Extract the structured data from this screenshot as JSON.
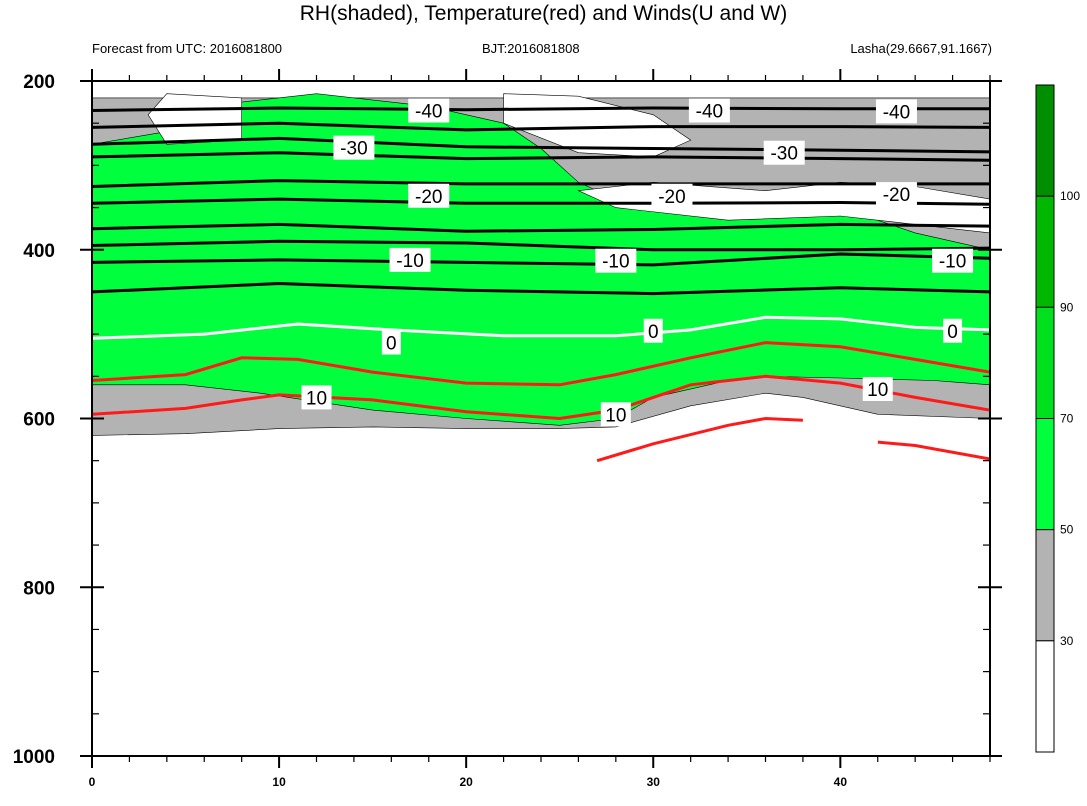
{
  "title": "RH(shaded), Temperature(red) and Winds(U and W)",
  "subtitle_left": "Forecast from UTC: 2016081800",
  "subtitle_center": "BJT:2016081808",
  "subtitle_right": "Lasha(29.6667,91.1667)",
  "colors": {
    "white": "#ffffff",
    "gray": "#b3b3b3",
    "green_light": "#00ff3c",
    "green_mid": "#00e01f",
    "green_deep": "#00b800",
    "green_dark": "#008f00",
    "green_darkest": "#007000",
    "temp_cold": "#000000",
    "temp_zero": "#ffffff",
    "temp_warm": "#ff1a1a"
  },
  "chart_data": {
    "type": "heatmap",
    "xlabel": "",
    "ylabel": "",
    "x_range": [
      0,
      48
    ],
    "y_range": [
      200,
      1000
    ],
    "y_axis": "pressure (inverted, top=200)",
    "x_ticks": [
      "0",
      "10",
      "20",
      "30",
      "40"
    ],
    "x_tick_values": [
      0,
      10,
      20,
      30,
      40
    ],
    "y_ticks": [
      "200",
      "400",
      "600",
      "800",
      "1000"
    ],
    "y_tick_values": [
      200,
      400,
      600,
      800,
      1000
    ],
    "colorbar": {
      "labels": [
        "30",
        "50",
        "70",
        "90",
        "100"
      ],
      "levels": [
        30,
        50,
        70,
        90,
        100
      ],
      "colors": [
        "#ffffff",
        "#b3b3b3",
        "#00ff3c",
        "#00e01f",
        "#00b800",
        "#008f00"
      ]
    },
    "rh_layers": [
      {
        "name": "gray",
        "color": "#b3b3b3",
        "top": [
          [
            0,
            220
          ],
          [
            48,
            220
          ]
        ],
        "bottom": [
          [
            0,
            620
          ],
          [
            5,
            618
          ],
          [
            10,
            612
          ],
          [
            15,
            610
          ],
          [
            20,
            612
          ],
          [
            25,
            612
          ],
          [
            28,
            610
          ],
          [
            32,
            585
          ],
          [
            36,
            570
          ],
          [
            38,
            575
          ],
          [
            42,
            595
          ],
          [
            48,
            600
          ]
        ]
      },
      {
        "name": "green",
        "color": "#00ff3c",
        "top": [
          [
            0,
            275
          ],
          [
            4,
            260
          ],
          [
            6,
            230
          ],
          [
            12,
            215
          ],
          [
            18,
            230
          ],
          [
            22,
            250
          ],
          [
            24,
            280
          ],
          [
            26,
            320
          ],
          [
            28,
            340
          ],
          [
            32,
            355
          ],
          [
            36,
            345
          ],
          [
            40,
            350
          ],
          [
            44,
            380
          ],
          [
            48,
            400
          ]
        ],
        "bottom": [
          [
            0,
            560
          ],
          [
            5,
            560
          ],
          [
            9,
            570
          ],
          [
            15,
            590
          ],
          [
            20,
            600
          ],
          [
            25,
            608
          ],
          [
            28,
            600
          ],
          [
            30,
            575
          ],
          [
            34,
            555
          ],
          [
            36,
            550
          ],
          [
            40,
            552
          ],
          [
            45,
            555
          ],
          [
            48,
            560
          ]
        ]
      }
    ],
    "white_patches": [
      {
        "points": [
          [
            4,
            215
          ],
          [
            8,
            220
          ],
          [
            8,
            270
          ],
          [
            4,
            275
          ],
          [
            3,
            240
          ]
        ]
      },
      {
        "points": [
          [
            22,
            215
          ],
          [
            26,
            218
          ],
          [
            30,
            240
          ],
          [
            32,
            270
          ],
          [
            30,
            290
          ],
          [
            26,
            285
          ],
          [
            22,
            250
          ]
        ]
      },
      {
        "points": [
          [
            26,
            330
          ],
          [
            30,
            320
          ],
          [
            36,
            330
          ],
          [
            40,
            320
          ],
          [
            44,
            325
          ],
          [
            48,
            340
          ],
          [
            48,
            380
          ],
          [
            44,
            370
          ],
          [
            40,
            360
          ],
          [
            34,
            365
          ],
          [
            28,
            350
          ]
        ]
      }
    ],
    "temperature": [
      {
        "level": -40,
        "color": "#000000",
        "points": [
          [
            0,
            235
          ],
          [
            10,
            232
          ],
          [
            20,
            234
          ],
          [
            30,
            232
          ],
          [
            40,
            233
          ],
          [
            48,
            233
          ]
        ]
      },
      {
        "level": -30,
        "color": "#000000",
        "points": [
          [
            0,
            255
          ],
          [
            10,
            250
          ],
          [
            20,
            258
          ],
          [
            30,
            254
          ],
          [
            40,
            254
          ],
          [
            48,
            255
          ]
        ]
      },
      {
        "level": -30,
        "color": "#000000",
        "points": [
          [
            0,
            275
          ],
          [
            10,
            268
          ],
          [
            20,
            278
          ],
          [
            30,
            280
          ],
          [
            40,
            282
          ],
          [
            48,
            284
          ]
        ]
      },
      {
        "level": -30,
        "color": "#000000",
        "points": [
          [
            0,
            290
          ],
          [
            10,
            285
          ],
          [
            20,
            292
          ],
          [
            30,
            290
          ],
          [
            40,
            292
          ],
          [
            48,
            294
          ]
        ]
      },
      {
        "level": -20,
        "color": "#000000",
        "points": [
          [
            0,
            325
          ],
          [
            10,
            318
          ],
          [
            20,
            322
          ],
          [
            30,
            322
          ],
          [
            40,
            322
          ],
          [
            48,
            322
          ]
        ]
      },
      {
        "level": -20,
        "color": "#000000",
        "points": [
          [
            0,
            345
          ],
          [
            10,
            340
          ],
          [
            20,
            345
          ],
          [
            30,
            345
          ],
          [
            40,
            344
          ],
          [
            48,
            346
          ]
        ]
      },
      {
        "level": -20,
        "color": "#000000",
        "points": [
          [
            0,
            375
          ],
          [
            10,
            370
          ],
          [
            20,
            378
          ],
          [
            30,
            376
          ],
          [
            40,
            370
          ],
          [
            48,
            372
          ]
        ]
      },
      {
        "level": -10,
        "color": "#000000",
        "points": [
          [
            0,
            395
          ],
          [
            10,
            390
          ],
          [
            20,
            392
          ],
          [
            30,
            400
          ],
          [
            40,
            400
          ],
          [
            48,
            398
          ]
        ]
      },
      {
        "level": -10,
        "color": "#000000",
        "points": [
          [
            0,
            415
          ],
          [
            10,
            412
          ],
          [
            20,
            415
          ],
          [
            30,
            418
          ],
          [
            40,
            405
          ],
          [
            48,
            410
          ]
        ]
      },
      {
        "level": -10,
        "color": "#000000",
        "points": [
          [
            0,
            450
          ],
          [
            10,
            440
          ],
          [
            20,
            448
          ],
          [
            30,
            452
          ],
          [
            40,
            445
          ],
          [
            48,
            450
          ]
        ]
      },
      {
        "level": 0,
        "color": "#ffffff",
        "points": [
          [
            0,
            505
          ],
          [
            6,
            500
          ],
          [
            11,
            488
          ],
          [
            16,
            495
          ],
          [
            22,
            502
          ],
          [
            28,
            502
          ],
          [
            32,
            495
          ],
          [
            36,
            480
          ],
          [
            40,
            482
          ],
          [
            44,
            492
          ],
          [
            48,
            495
          ]
        ]
      },
      {
        "level": 10,
        "color": "#ff1a1a",
        "points": [
          [
            0,
            555
          ],
          [
            5,
            548
          ],
          [
            8,
            528
          ],
          [
            11,
            530
          ],
          [
            15,
            545
          ],
          [
            20,
            558
          ],
          [
            25,
            560
          ],
          [
            28,
            548
          ],
          [
            32,
            528
          ],
          [
            36,
            510
          ],
          [
            40,
            515
          ],
          [
            44,
            530
          ],
          [
            48,
            545
          ]
        ]
      },
      {
        "level": 10,
        "color": "#ff1a1a",
        "points": [
          [
            0,
            595
          ],
          [
            5,
            588
          ],
          [
            8,
            578
          ],
          [
            10,
            572
          ],
          [
            15,
            578
          ],
          [
            20,
            592
          ],
          [
            25,
            600
          ],
          [
            28,
            590
          ],
          [
            32,
            560
          ],
          [
            36,
            550
          ],
          [
            40,
            558
          ],
          [
            44,
            575
          ],
          [
            48,
            590
          ]
        ]
      },
      {
        "level": 10,
        "color": "#ff1a1a",
        "points": [
          [
            27,
            650
          ],
          [
            30,
            630
          ],
          [
            34,
            608
          ],
          [
            36,
            600
          ],
          [
            38,
            602
          ]
        ]
      },
      {
        "level": 10,
        "color": "#ff1a1a",
        "points": [
          [
            42,
            628
          ],
          [
            44,
            632
          ],
          [
            48,
            648
          ]
        ]
      }
    ],
    "contour_labels": [
      {
        "text": "-40",
        "x": 18,
        "y": 235
      },
      {
        "text": "-40",
        "x": 33,
        "y": 235
      },
      {
        "text": "-40",
        "x": 43,
        "y": 236
      },
      {
        "text": "-30",
        "x": 14,
        "y": 279
      },
      {
        "text": "-30",
        "x": 37,
        "y": 285
      },
      {
        "text": "-20",
        "x": 18,
        "y": 336
      },
      {
        "text": "-20",
        "x": 31,
        "y": 336
      },
      {
        "text": "-20",
        "x": 43,
        "y": 334
      },
      {
        "text": "-10",
        "x": 17,
        "y": 412
      },
      {
        "text": "-10",
        "x": 28,
        "y": 413
      },
      {
        "text": "-10",
        "x": 46,
        "y": 413
      },
      {
        "text": "0",
        "x": 16,
        "y": 510
      },
      {
        "text": "0",
        "x": 30,
        "y": 496
      },
      {
        "text": "0",
        "x": 46,
        "y": 496
      },
      {
        "text": "10",
        "x": 12,
        "y": 575
      },
      {
        "text": "10",
        "x": 28,
        "y": 595
      },
      {
        "text": "10",
        "x": 42,
        "y": 565
      }
    ]
  }
}
